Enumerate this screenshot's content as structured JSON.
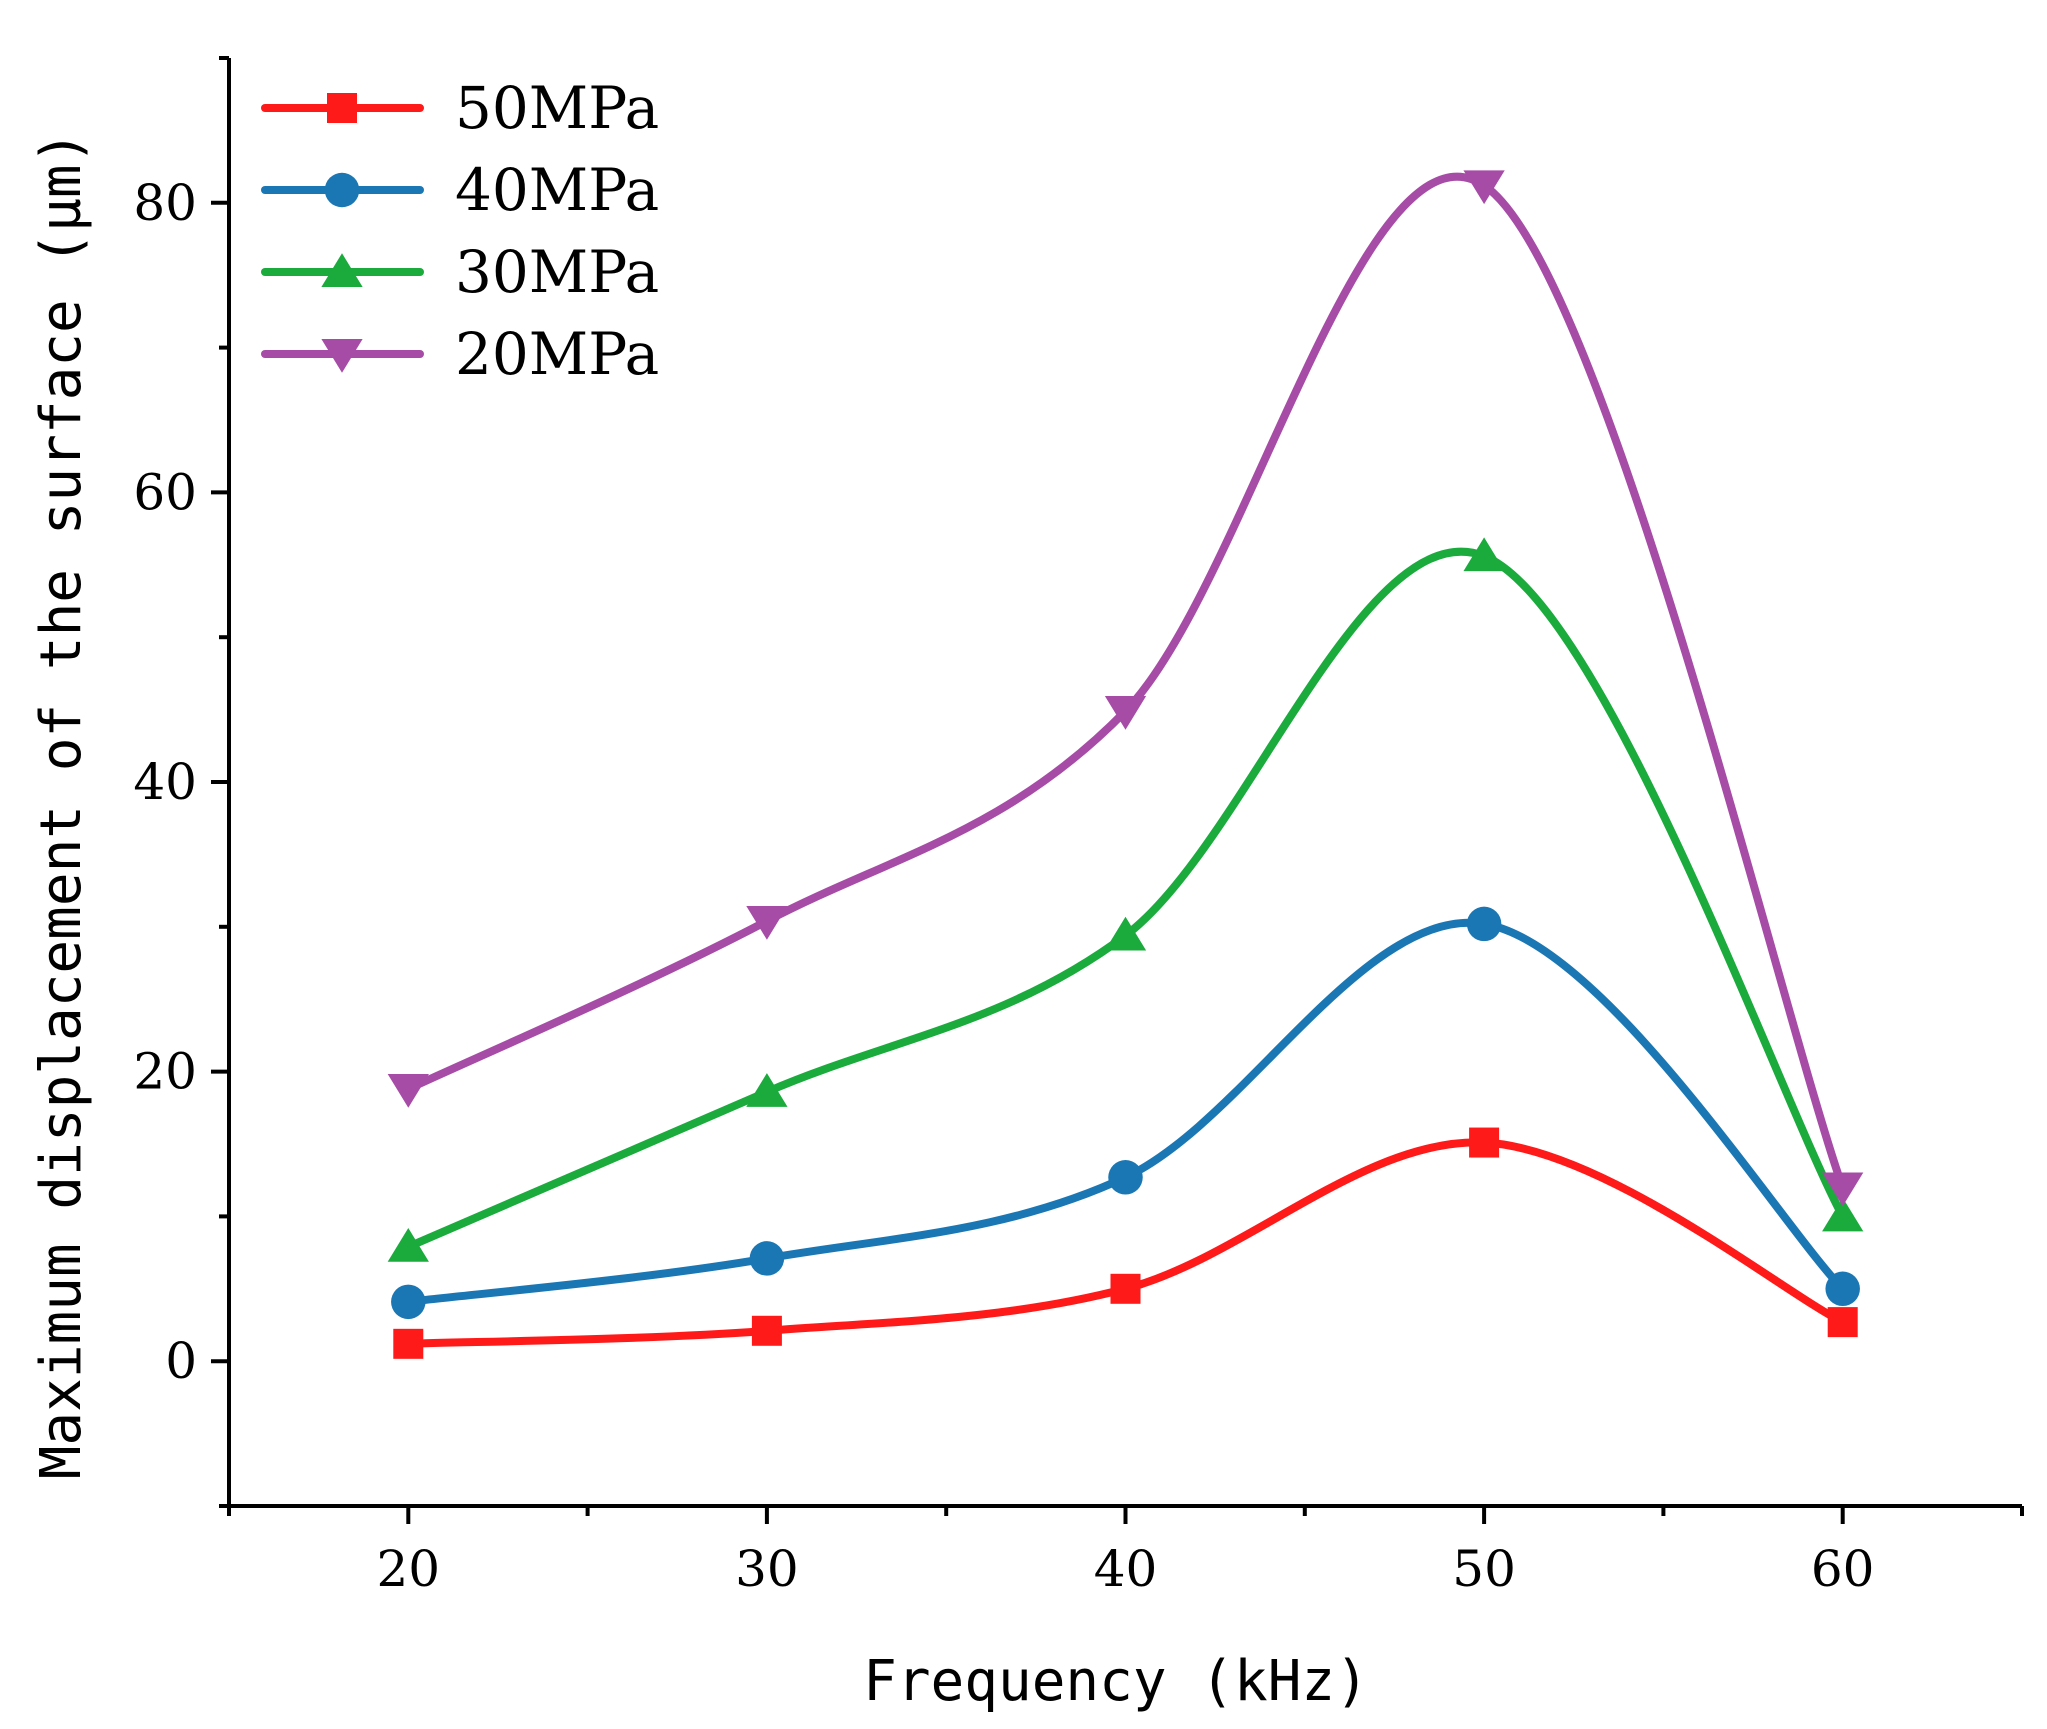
{
  "chart_data": {
    "type": "line",
    "title": "",
    "xlabel": "Frequency (kHz)",
    "ylabel": "Maximum displacement of the surface (μm)",
    "x": [
      20,
      30,
      40,
      50,
      60
    ],
    "xlim": [
      15,
      65
    ],
    "ylim": [
      -10,
      90
    ],
    "xticks": [
      20,
      30,
      40,
      50,
      60
    ],
    "yticks": [
      0,
      20,
      40,
      60,
      80
    ],
    "grid": false,
    "legend_position": "top-left",
    "series": [
      {
        "name": "50MPa",
        "color": "#ff1a1a",
        "marker": "square",
        "values": [
          1.2,
          2.1,
          5.0,
          15.1,
          2.7
        ]
      },
      {
        "name": "40MPa",
        "color": "#1b77b4",
        "marker": "circle",
        "values": [
          4.1,
          7.1,
          12.7,
          30.2,
          5.0
        ]
      },
      {
        "name": "30MPa",
        "color": "#1aab3c",
        "marker": "triangle-up",
        "values": [
          7.9,
          18.6,
          29.4,
          55.6,
          10.0
        ]
      },
      {
        "name": "20MPa",
        "color": "#a64ca6",
        "marker": "triangle-down",
        "values": [
          18.8,
          30.4,
          44.9,
          81.2,
          12.0
        ]
      }
    ]
  }
}
